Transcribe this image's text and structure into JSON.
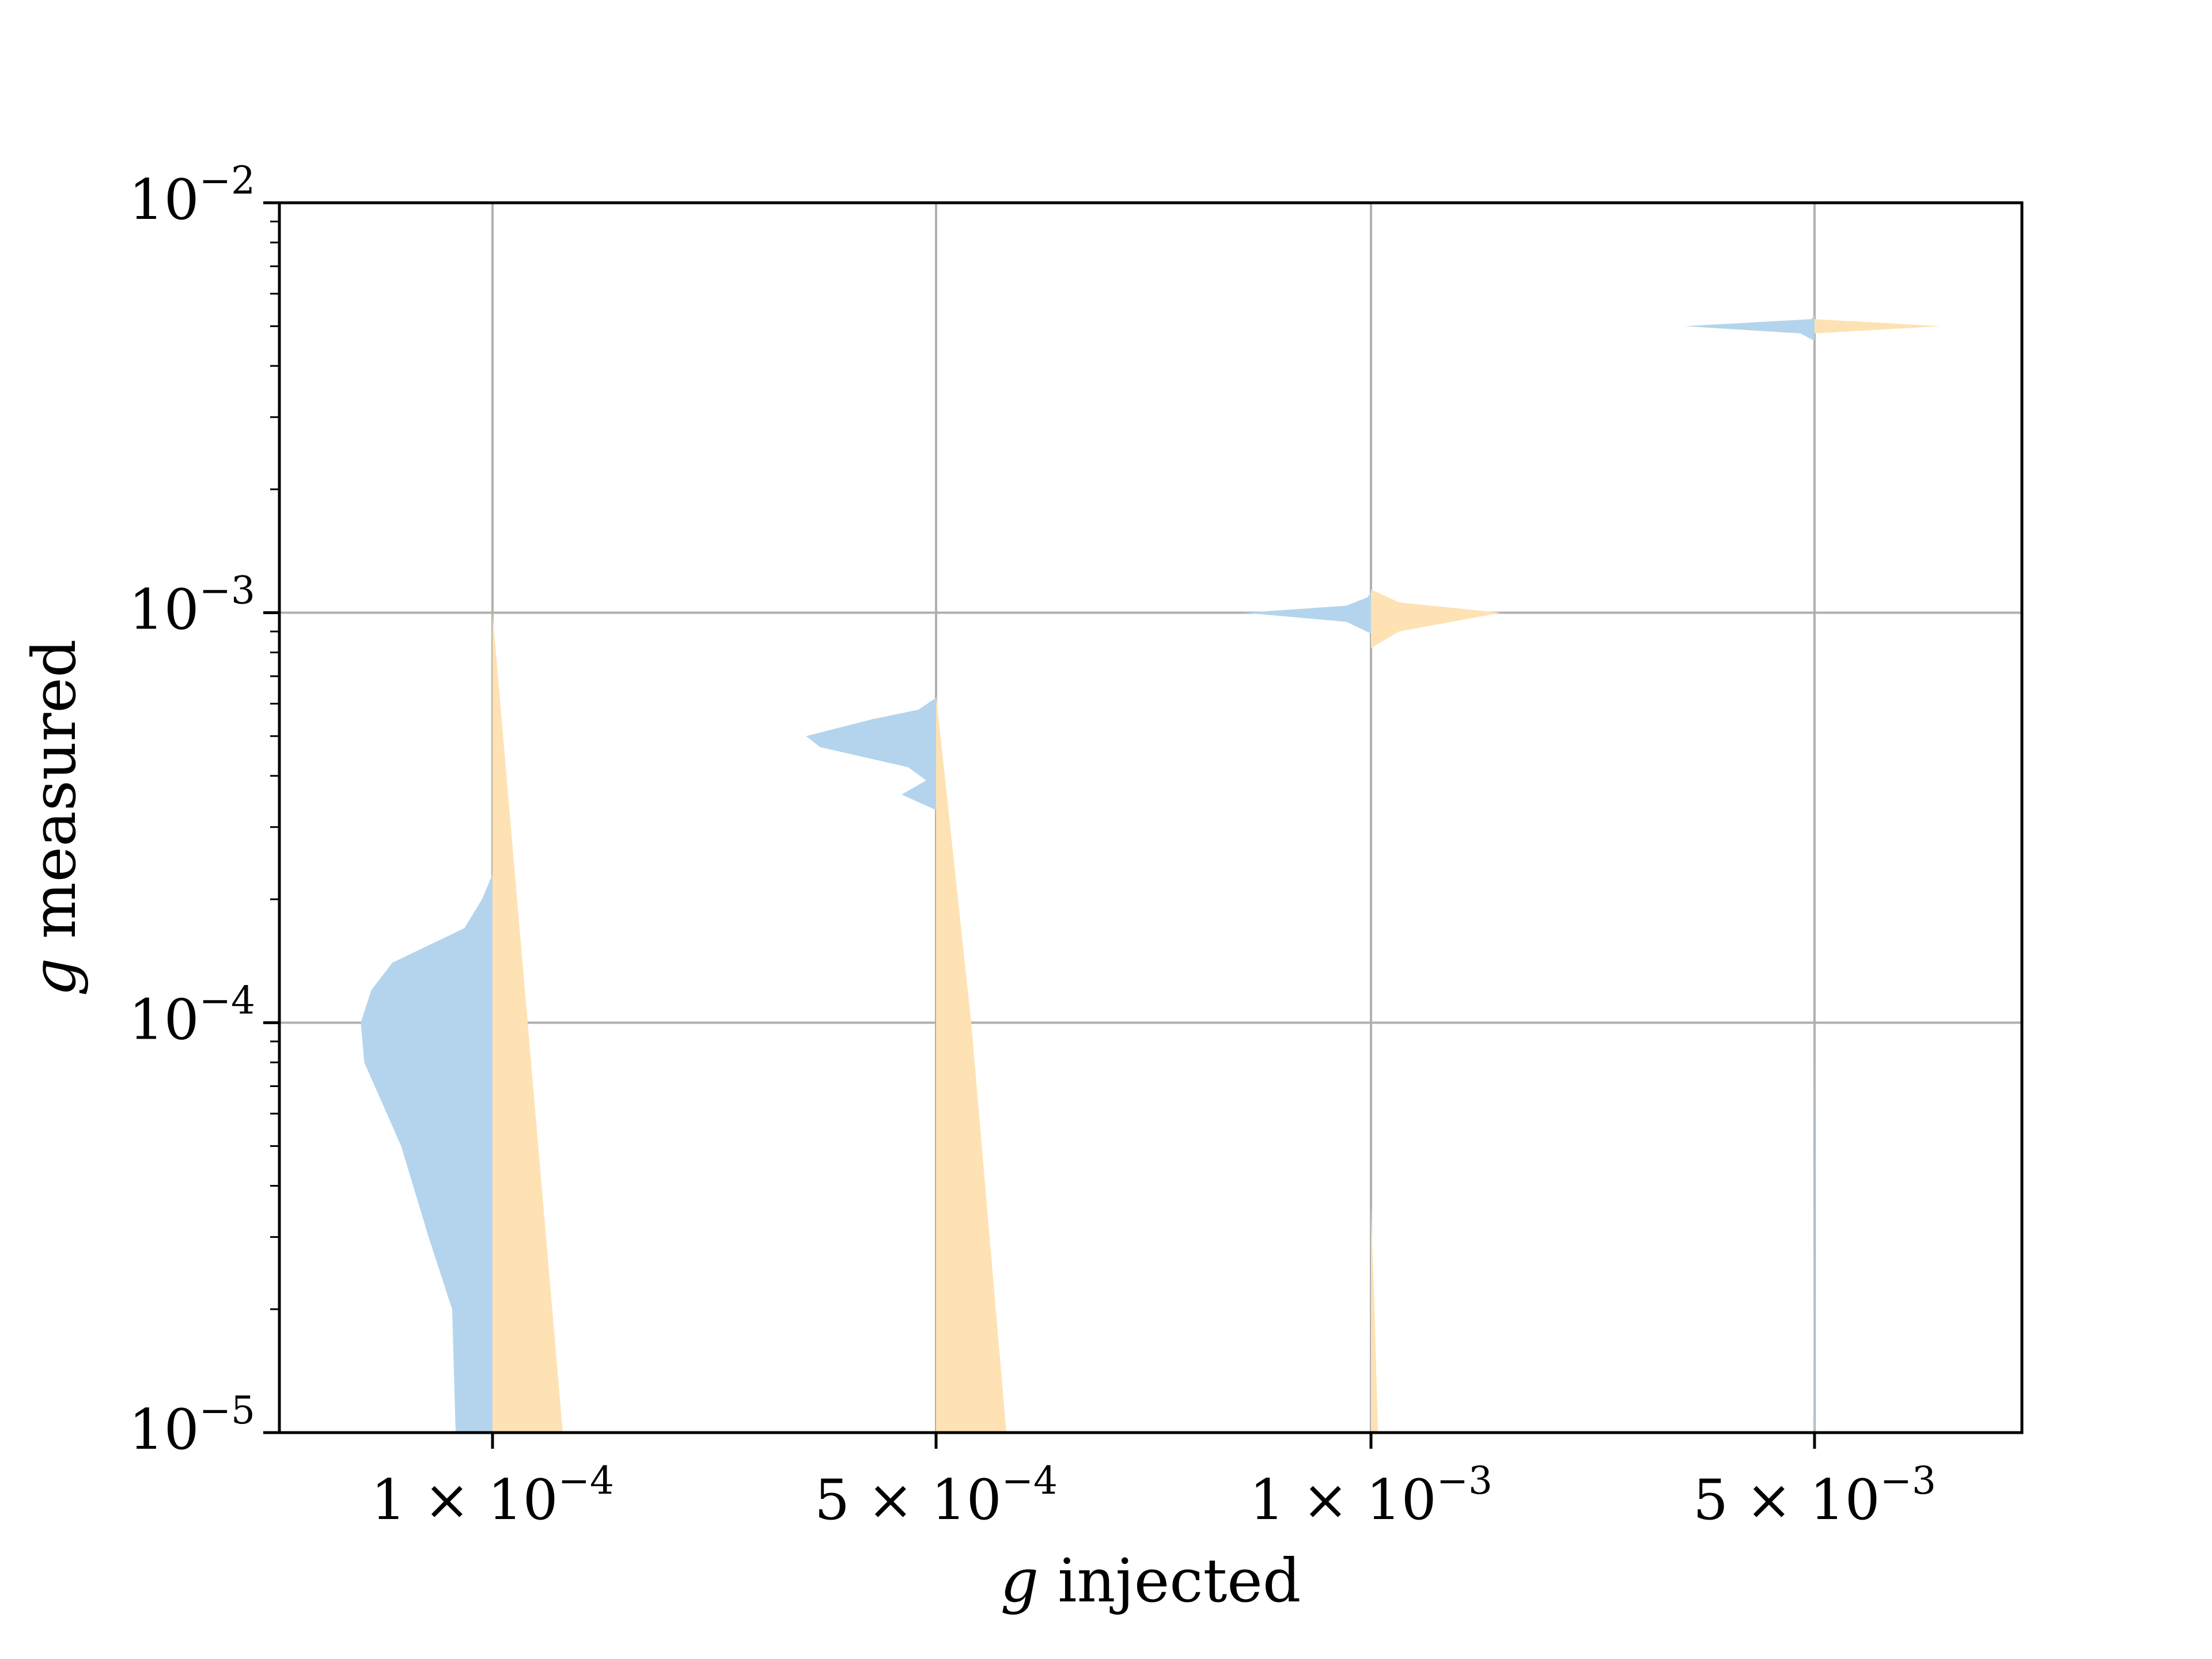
{
  "chart_data": {
    "type": "violin",
    "xlabel": "injected",
    "xlabel_symbol": "g",
    "ylabel": "measured",
    "ylabel_symbol": "g",
    "y_scale": "log",
    "ylim": [
      1e-05,
      0.01
    ],
    "grid": true,
    "categories": [
      {
        "value": 0.0001,
        "mantissa": "1",
        "times": "×",
        "base": "10",
        "exponent": "−4"
      },
      {
        "value": 0.0005,
        "mantissa": "5",
        "times": "×",
        "base": "10",
        "exponent": "−4"
      },
      {
        "value": 0.001,
        "mantissa": "1",
        "times": "×",
        "base": "10",
        "exponent": "−3"
      },
      {
        "value": 0.005,
        "mantissa": "5",
        "times": "×",
        "base": "10",
        "exponent": "−3"
      }
    ],
    "y_major_ticks": [
      {
        "value": 1e-05,
        "base": "10",
        "exponent": "−5"
      },
      {
        "value": 0.0001,
        "base": "10",
        "exponent": "−4"
      },
      {
        "value": 0.001,
        "base": "10",
        "exponent": "−3"
      },
      {
        "value": 0.01,
        "base": "10",
        "exponent": "−2"
      }
    ],
    "series": [
      {
        "side": "left",
        "color": "#b3d4ec",
        "violins": [
          {
            "category": 0.0001,
            "profile": [
              [
                1e-05,
                0.105
              ],
              [
                2e-05,
                0.115
              ],
              [
                3e-05,
                0.182
              ],
              [
                5e-05,
                0.26
              ],
              [
                8e-05,
                0.365
              ],
              [
                0.0001,
                0.375
              ],
              [
                0.00012,
                0.345
              ],
              [
                0.00014,
                0.285
              ],
              [
                0.00017,
                0.08
              ],
              [
                0.0002,
                0.03
              ],
              [
                0.00023,
                0.0
              ]
            ]
          },
          {
            "category": 0.0005,
            "profile": [
              [
                0.00033,
                0.0
              ],
              [
                0.00036,
                0.098
              ],
              [
                0.00039,
                0.028
              ],
              [
                0.00042,
                0.08
              ],
              [
                0.00047,
                0.33
              ],
              [
                0.0005,
                0.37
              ],
              [
                0.00055,
                0.18
              ],
              [
                0.00058,
                0.05
              ],
              [
                0.00062,
                0.0
              ]
            ]
          },
          {
            "category": 0.001,
            "profile": [
              [
                0.00089,
                0.0
              ],
              [
                0.00095,
                0.07
              ],
              [
                0.001,
                0.36
              ],
              [
                0.00104,
                0.07
              ],
              [
                0.00109,
                0.01
              ],
              [
                0.00112,
                0.0
              ]
            ]
          },
          {
            "category": 0.005,
            "profile": [
              [
                1e-05,
                0.004
              ],
              [
                3e-05,
                0.0025
              ],
              [
                0.0001,
                0.0
              ],
              [
                0.0046,
                0.0
              ],
              [
                0.0048,
                0.04
              ],
              [
                0.005,
                0.37
              ],
              [
                0.0052,
                0.01
              ],
              [
                0.0053,
                0.0
              ]
            ]
          }
        ]
      },
      {
        "side": "right",
        "color": "#fee2b3",
        "violins": [
          {
            "category": 0.0001,
            "profile": [
              [
                1e-05,
                0.2
              ],
              [
                0.0001,
                0.1
              ],
              [
                0.001,
                0.0
              ]
            ]
          },
          {
            "category": 0.0005,
            "profile": [
              [
                1e-05,
                0.2
              ],
              [
                0.0001,
                0.1
              ],
              [
                0.00063,
                0.0
              ]
            ]
          },
          {
            "category": 0.001,
            "profile": [
              [
                1e-05,
                0.02
              ],
              [
                2e-05,
                0.01
              ],
              [
                3.6e-05,
                0.0
              ],
              [
                0.00082,
                0.0
              ],
              [
                0.0009,
                0.08
              ],
              [
                0.001,
                0.37
              ],
              [
                0.00106,
                0.08
              ],
              [
                0.00114,
                0.0
              ]
            ]
          },
          {
            "category": 0.005,
            "profile": [
              [
                0.0048,
                0.0
              ],
              [
                0.005,
                0.36
              ],
              [
                0.0052,
                0.0
              ]
            ]
          }
        ]
      }
    ]
  }
}
